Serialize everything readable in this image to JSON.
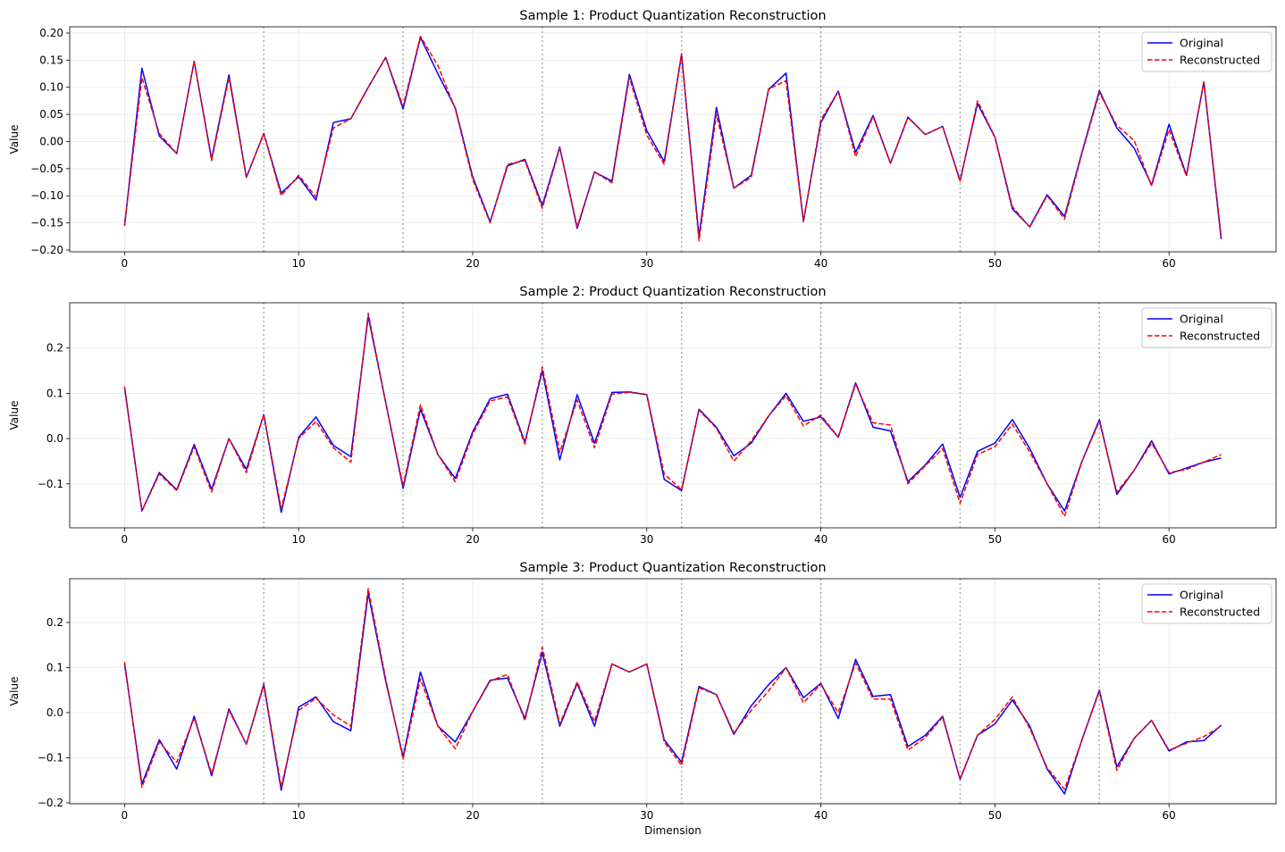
{
  "chart_data": [
    {
      "type": "line",
      "title": "Sample 1: Product Quantization Reconstruction",
      "xlabel": "",
      "ylabel": "Value",
      "xlim": [
        -3.15,
        66.15
      ],
      "ylim": [
        -0.2033,
        0.2115
      ],
      "xticks": [
        0,
        10,
        20,
        30,
        40,
        50,
        60
      ],
      "yticks": [
        0.2,
        0.15,
        0.1,
        0.05,
        0.0,
        -0.05,
        -0.1,
        -0.15,
        -0.2
      ],
      "ytick_labels": [
        "0.20",
        "0.15",
        "0.10",
        "0.05",
        "0.00",
        "−0.05",
        "−0.10",
        "−0.15",
        "−0.20"
      ],
      "subspace_boundaries": [
        8,
        16,
        24,
        32,
        40,
        48,
        56
      ],
      "grid": true,
      "legend_position": "top-right",
      "series": [
        {
          "name": "Original",
          "color": "#0000ff",
          "style": "solid",
          "values": [
            -0.155,
            0.135,
            0.01,
            -0.022,
            0.148,
            -0.032,
            0.123,
            -0.066,
            0.015,
            -0.095,
            -0.065,
            -0.108,
            0.035,
            0.042,
            0.1,
            0.155,
            0.06,
            0.192,
            0.125,
            0.062,
            -0.065,
            -0.148,
            -0.045,
            -0.033,
            -0.118,
            -0.01,
            -0.16,
            -0.056,
            -0.073,
            0.124,
            0.02,
            -0.037,
            0.16,
            -0.175,
            0.063,
            -0.086,
            -0.062,
            0.096,
            0.126,
            -0.147,
            0.035,
            0.093,
            -0.02,
            0.048,
            -0.04,
            0.045,
            0.013,
            0.028,
            -0.072,
            0.07,
            0.008,
            -0.124,
            -0.157,
            -0.098,
            -0.138,
            -0.02,
            0.094,
            0.025,
            -0.012,
            -0.08,
            0.032,
            -0.062,
            0.11,
            -0.18
          ]
        },
        {
          "name": "Reconstructed",
          "color": "#ff0000",
          "style": "dashed",
          "values": [
            -0.155,
            0.118,
            0.015,
            -0.022,
            0.148,
            -0.035,
            0.118,
            -0.066,
            0.015,
            -0.1,
            -0.062,
            -0.102,
            0.025,
            0.042,
            0.1,
            0.155,
            0.065,
            0.194,
            0.14,
            0.06,
            -0.07,
            -0.15,
            -0.042,
            -0.035,
            -0.123,
            -0.012,
            -0.157,
            -0.056,
            -0.076,
            0.118,
            0.012,
            -0.042,
            0.162,
            -0.183,
            0.05,
            -0.086,
            -0.066,
            0.097,
            0.112,
            -0.148,
            0.04,
            0.093,
            -0.028,
            0.046,
            -0.04,
            0.044,
            0.013,
            0.028,
            -0.074,
            0.075,
            0.008,
            -0.12,
            -0.158,
            -0.1,
            -0.143,
            -0.022,
            0.09,
            0.03,
            0.002,
            -0.082,
            0.022,
            -0.064,
            0.11,
            -0.175
          ]
        }
      ]
    },
    {
      "type": "line",
      "title": "Sample 2: Product Quantization Reconstruction",
      "xlabel": "",
      "ylabel": "Value",
      "xlim": [
        -3.15,
        66.15
      ],
      "ylim": [
        -0.197,
        0.3
      ],
      "xticks": [
        0,
        10,
        20,
        30,
        40,
        50,
        60
      ],
      "yticks": [
        0.2,
        0.1,
        0.0,
        -0.1
      ],
      "ytick_labels": [
        "0.2",
        "0.1",
        "0.0",
        "−0.1"
      ],
      "subspace_boundaries": [
        8,
        16,
        24,
        32,
        40,
        48,
        56
      ],
      "grid": true,
      "legend_position": "top-right",
      "series": [
        {
          "name": "Original",
          "color": "#0000ff",
          "style": "solid",
          "values": [
            0.112,
            -0.16,
            -0.075,
            -0.113,
            -0.013,
            -0.112,
            0.0,
            -0.068,
            0.053,
            -0.163,
            0.003,
            0.048,
            -0.015,
            -0.04,
            0.27,
            0.08,
            -0.11,
            0.065,
            -0.035,
            -0.088,
            0.015,
            0.088,
            0.098,
            -0.008,
            0.15,
            -0.047,
            0.097,
            -0.01,
            0.102,
            0.103,
            0.097,
            -0.09,
            -0.115,
            0.065,
            0.025,
            -0.038,
            -0.01,
            0.05,
            0.1,
            0.038,
            0.048,
            0.003,
            0.123,
            0.025,
            0.017,
            -0.095,
            -0.058,
            -0.012,
            -0.13,
            -0.028,
            -0.01,
            0.042,
            -0.022,
            -0.1,
            -0.16,
            -0.05,
            0.042,
            -0.123,
            -0.07,
            -0.005,
            -0.078,
            -0.065,
            -0.052,
            -0.043
          ]
        },
        {
          "name": "Reconstructed",
          "color": "#ff0000",
          "style": "dashed",
          "values": [
            0.115,
            -0.16,
            -0.078,
            -0.115,
            -0.018,
            -0.118,
            0.0,
            -0.075,
            0.053,
            -0.155,
            0.0,
            0.038,
            -0.02,
            -0.052,
            0.277,
            0.08,
            -0.105,
            0.075,
            -0.035,
            -0.095,
            0.01,
            0.083,
            0.092,
            -0.012,
            0.158,
            -0.03,
            0.085,
            -0.02,
            0.098,
            0.102,
            0.097,
            -0.078,
            -0.113,
            0.063,
            0.023,
            -0.05,
            -0.005,
            0.05,
            0.095,
            0.028,
            0.052,
            0.003,
            0.12,
            0.035,
            0.03,
            -0.1,
            -0.06,
            -0.022,
            -0.143,
            -0.035,
            -0.018,
            0.032,
            -0.03,
            -0.1,
            -0.172,
            -0.05,
            0.038,
            -0.118,
            -0.07,
            -0.01,
            -0.075,
            -0.068,
            -0.052,
            -0.035
          ]
        }
      ]
    },
    {
      "type": "line",
      "title": "Sample 3: Product Quantization Reconstruction",
      "xlabel": "Dimension",
      "ylabel": "Value",
      "xlim": [
        -3.15,
        66.15
      ],
      "ylim": [
        -0.202,
        0.297
      ],
      "xticks": [
        0,
        10,
        20,
        30,
        40,
        50,
        60
      ],
      "yticks": [
        0.2,
        0.1,
        0.0,
        -0.1,
        -0.2
      ],
      "ytick_labels": [
        "0.2",
        "0.1",
        "0.0",
        "−0.1",
        "−0.2"
      ],
      "subspace_boundaries": [
        8,
        16,
        24,
        32,
        40,
        48,
        56
      ],
      "grid": true,
      "legend_position": "top-right",
      "series": [
        {
          "name": "Original",
          "color": "#0000ff",
          "style": "solid",
          "values": [
            0.108,
            -0.158,
            -0.06,
            -0.125,
            -0.008,
            -0.14,
            0.008,
            -0.07,
            0.062,
            -0.172,
            0.012,
            0.035,
            -0.02,
            -0.04,
            0.265,
            0.07,
            -0.098,
            0.09,
            -0.03,
            -0.065,
            0.003,
            0.072,
            0.077,
            -0.013,
            0.133,
            -0.03,
            0.065,
            -0.03,
            0.108,
            0.09,
            0.108,
            -0.06,
            -0.11,
            0.058,
            0.04,
            -0.048,
            0.015,
            0.062,
            0.1,
            0.033,
            0.065,
            -0.013,
            0.118,
            0.036,
            0.04,
            -0.075,
            -0.05,
            -0.008,
            -0.148,
            -0.05,
            -0.025,
            0.028,
            -0.03,
            -0.125,
            -0.18,
            -0.06,
            0.05,
            -0.12,
            -0.057,
            -0.017,
            -0.085,
            -0.065,
            -0.062,
            -0.028
          ]
        },
        {
          "name": "Reconstructed",
          "color": "#ff0000",
          "style": "dashed",
          "values": [
            0.112,
            -0.165,
            -0.065,
            -0.11,
            -0.012,
            -0.135,
            0.005,
            -0.07,
            0.065,
            -0.165,
            0.005,
            0.032,
            -0.005,
            -0.03,
            0.275,
            0.075,
            -0.103,
            0.075,
            -0.03,
            -0.08,
            0.003,
            0.07,
            0.085,
            -0.018,
            0.145,
            -0.025,
            0.068,
            -0.02,
            0.108,
            0.09,
            0.108,
            -0.065,
            -0.117,
            0.055,
            0.04,
            -0.045,
            0.005,
            0.048,
            0.1,
            0.022,
            0.063,
            0.0,
            0.11,
            0.03,
            0.03,
            -0.083,
            -0.055,
            -0.01,
            -0.148,
            -0.05,
            -0.015,
            0.035,
            -0.035,
            -0.122,
            -0.17,
            -0.06,
            0.048,
            -0.128,
            -0.057,
            -0.017,
            -0.083,
            -0.068,
            -0.053,
            -0.03
          ]
        }
      ]
    }
  ]
}
